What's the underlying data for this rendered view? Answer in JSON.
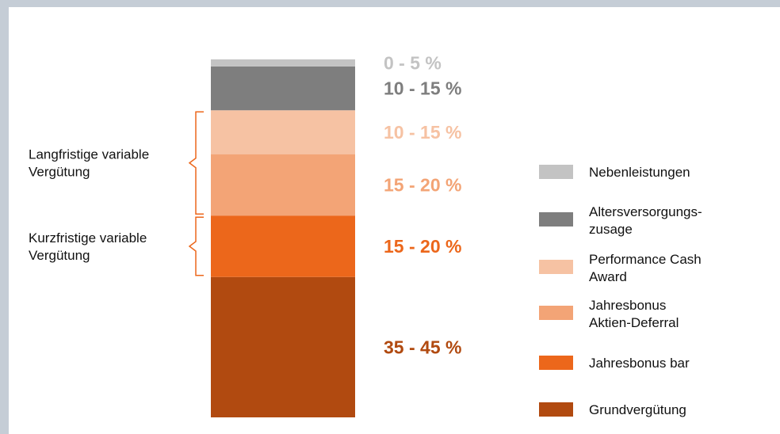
{
  "chart_data": {
    "type": "bar",
    "stacked": true,
    "orientation": "vertical",
    "categories": [
      "Vergütung"
    ],
    "series": [
      {
        "name": "Grundvergütung",
        "range_label": "35 - 45 %",
        "value": 40,
        "color": "#b14a10"
      },
      {
        "name": "Jahresbonus bar",
        "range_label": "15 - 20 %",
        "value": 17.5,
        "color": "#ec671b"
      },
      {
        "name": "Jahresbonus Aktien-Deferral",
        "range_label": "15 - 20 %",
        "value": 17.5,
        "color": "#f3a476"
      },
      {
        "name": "Performance Cash Award",
        "range_label": "10 - 15 %",
        "value": 12.5,
        "color": "#f6c2a3"
      },
      {
        "name": "Altersversorgungs-zusage",
        "range_label": "10 - 15 %",
        "value": 12.5,
        "color": "#7e7e7e"
      },
      {
        "name": "Nebenleistungen",
        "range_label": "0 - 5 %",
        "value": 2,
        "color": "#c3c3c3"
      }
    ],
    "legend": {
      "position": "right",
      "items": [
        {
          "lines": [
            "Nebenleistungen"
          ],
          "color": "#c3c3c3"
        },
        {
          "lines": [
            "Altersversorgungs-",
            "zusage"
          ],
          "color": "#7e7e7e"
        },
        {
          "lines": [
            "Performance Cash",
            "Award"
          ],
          "color": "#f6c2a3"
        },
        {
          "lines": [
            "Jahresbonus",
            "Aktien-Deferral"
          ],
          "color": "#f3a476"
        },
        {
          "lines": [
            "Jahresbonus bar"
          ],
          "color": "#ec671b"
        },
        {
          "lines": [
            "Grundvergütung"
          ],
          "color": "#b14a10"
        }
      ]
    },
    "groups": [
      {
        "lines": [
          "Langfristige variable",
          "Vergütung"
        ],
        "segments": [
          "Jahresbonus Aktien-Deferral",
          "Performance Cash Award"
        ]
      },
      {
        "lines": [
          "Kurzfristige variable",
          "Vergütung"
        ],
        "segments": [
          "Jahresbonus bar"
        ]
      }
    ],
    "bracket_color": "#ec671b",
    "grid": false,
    "title": "",
    "xlabel": "",
    "ylabel": ""
  }
}
